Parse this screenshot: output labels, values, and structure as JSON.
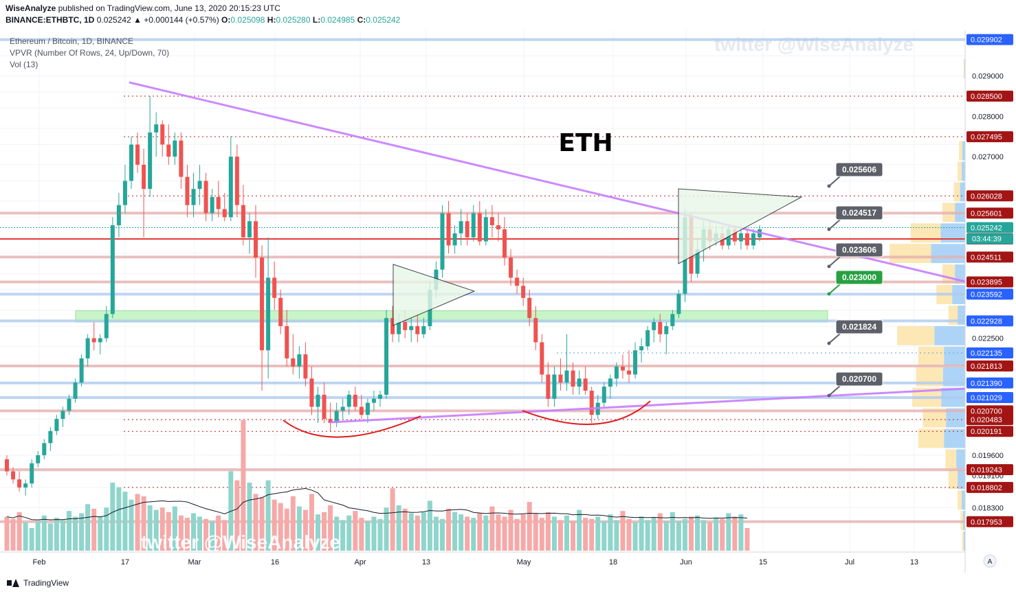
{
  "header": {
    "author": "WiseAnalyze",
    "published_text": "published on TradingView.com, June 13, 2020 20:15:23 UTC",
    "symbol_line": "BINANCE:ETHBTC, 1D",
    "change": "0.025242 ▲ +0.000144 (+0.57%)",
    "o_label": "O:",
    "o_value": "0.025098",
    "h_label": "H:",
    "h_value": "0.025280",
    "l_label": "L:",
    "l_value": "0.024985",
    "c_label": "C:",
    "c_value": "0.025242"
  },
  "legend": {
    "line1": "Ethereum / Bitcoin, 1D, BINANCE",
    "line2": "VPVR (Number Of Rows, 24, Up/Down, 70)",
    "line3": "Vol (13)"
  },
  "watermark": "twitter @WiseAnalyze",
  "chart_title": "ETH",
  "footer": {
    "brand": "TradingView"
  },
  "colors": {
    "up": "#26a69a",
    "down": "#ef5350",
    "trendline": "#c77dff",
    "resistance_band": "#e6b0b0",
    "support_band": "#aecbf0",
    "green_zone": "#b6f2b6",
    "price_tag_red": "#a31515",
    "price_tag_blue": "#2962ff",
    "price_tag_green": "#26a69a"
  },
  "chart_data": {
    "type": "candlestick",
    "symbol": "BINANCE:ETHBTC",
    "interval": "1D",
    "y_axis": {
      "ticks": [
        "0.029000",
        "0.028000",
        "0.027000",
        "0.022500",
        "0.019600",
        "0.019100",
        "0.018300"
      ],
      "ylim": [
        0.0172,
        0.0301
      ]
    },
    "x_axis": {
      "ticks": [
        "Feb",
        "17",
        "Mar",
        "16",
        "Apr",
        "13",
        "May",
        "18",
        "Jun",
        "15",
        "Jul",
        "13"
      ]
    },
    "candles": [
      [
        0.0195,
        0.0196,
        0.0191,
        0.0192
      ],
      [
        0.0192,
        0.0193,
        0.0189,
        0.019
      ],
      [
        0.019,
        0.0192,
        0.0187,
        0.0188
      ],
      [
        0.0188,
        0.019,
        0.0186,
        0.0189
      ],
      [
        0.0189,
        0.0195,
        0.0188,
        0.0194
      ],
      [
        0.0194,
        0.0197,
        0.0193,
        0.0196
      ],
      [
        0.0196,
        0.02,
        0.0195,
        0.0199
      ],
      [
        0.0199,
        0.0203,
        0.0197,
        0.0202
      ],
      [
        0.0202,
        0.0206,
        0.0201,
        0.0205
      ],
      [
        0.0205,
        0.0208,
        0.0203,
        0.0207
      ],
      [
        0.0207,
        0.0211,
        0.0206,
        0.021
      ],
      [
        0.021,
        0.0215,
        0.0209,
        0.0214
      ],
      [
        0.0214,
        0.0221,
        0.0213,
        0.022
      ],
      [
        0.022,
        0.0226,
        0.0218,
        0.0225
      ],
      [
        0.0225,
        0.0229,
        0.0222,
        0.0224
      ],
      [
        0.0224,
        0.0226,
        0.0221,
        0.0225
      ],
      [
        0.0225,
        0.0233,
        0.0224,
        0.0231
      ],
      [
        0.0231,
        0.0255,
        0.023,
        0.0253
      ],
      [
        0.0253,
        0.0261,
        0.025,
        0.0258
      ],
      [
        0.0258,
        0.0268,
        0.0256,
        0.0264
      ],
      [
        0.0264,
        0.0275,
        0.0262,
        0.0273
      ],
      [
        0.0273,
        0.0276,
        0.0266,
        0.0268
      ],
      [
        0.0268,
        0.0272,
        0.025,
        0.0262
      ],
      [
        0.0262,
        0.0285,
        0.026,
        0.0276
      ],
      [
        0.0276,
        0.0281,
        0.027,
        0.0278
      ],
      [
        0.0278,
        0.0279,
        0.027,
        0.0273
      ],
      [
        0.0273,
        0.0278,
        0.0268,
        0.027
      ],
      [
        0.027,
        0.0276,
        0.0268,
        0.0274
      ],
      [
        0.0274,
        0.0276,
        0.0262,
        0.0265
      ],
      [
        0.0265,
        0.0268,
        0.0255,
        0.0258
      ],
      [
        0.0258,
        0.0266,
        0.0255,
        0.0262
      ],
      [
        0.0262,
        0.0268,
        0.0258,
        0.0264
      ],
      [
        0.0264,
        0.0266,
        0.0254,
        0.0256
      ],
      [
        0.0256,
        0.0262,
        0.0254,
        0.026
      ],
      [
        0.026,
        0.0264,
        0.0255,
        0.0257
      ],
      [
        0.0257,
        0.0261,
        0.0254,
        0.0255
      ],
      [
        0.0255,
        0.0275,
        0.0254,
        0.027
      ],
      [
        0.027,
        0.0273,
        0.0255,
        0.0258
      ],
      [
        0.0258,
        0.0263,
        0.0248,
        0.025
      ],
      [
        0.025,
        0.0256,
        0.0246,
        0.0254
      ],
      [
        0.0254,
        0.0258,
        0.024,
        0.0245
      ],
      [
        0.0245,
        0.0248,
        0.0212,
        0.0222
      ],
      [
        0.0222,
        0.025,
        0.0215,
        0.024
      ],
      [
        0.024,
        0.0244,
        0.0232,
        0.0235
      ],
      [
        0.0235,
        0.0237,
        0.0226,
        0.0228
      ],
      [
        0.0228,
        0.0232,
        0.0218,
        0.022
      ],
      [
        0.022,
        0.0226,
        0.0216,
        0.0218
      ],
      [
        0.0218,
        0.0223,
        0.0215,
        0.0221
      ],
      [
        0.0221,
        0.0224,
        0.0213,
        0.0215
      ],
      [
        0.0215,
        0.0218,
        0.0206,
        0.0208
      ],
      [
        0.0208,
        0.0213,
        0.0204,
        0.0211
      ],
      [
        0.0211,
        0.0214,
        0.0204,
        0.0205
      ],
      [
        0.0205,
        0.0209,
        0.0202,
        0.0204
      ],
      [
        0.0204,
        0.0209,
        0.0203,
        0.0207
      ],
      [
        0.0207,
        0.021,
        0.0205,
        0.0208
      ],
      [
        0.0208,
        0.0212,
        0.0206,
        0.0211
      ],
      [
        0.0211,
        0.0213,
        0.0207,
        0.0208
      ],
      [
        0.0208,
        0.0211,
        0.0205,
        0.0206
      ],
      [
        0.0206,
        0.021,
        0.0204,
        0.0209
      ],
      [
        0.0209,
        0.0212,
        0.0207,
        0.021
      ],
      [
        0.021,
        0.0212,
        0.0208,
        0.0211
      ],
      [
        0.0211,
        0.0232,
        0.021,
        0.023
      ],
      [
        0.023,
        0.0233,
        0.0224,
        0.0226
      ],
      [
        0.0226,
        0.0231,
        0.0224,
        0.0229
      ],
      [
        0.0229,
        0.0232,
        0.0225,
        0.0227
      ],
      [
        0.0227,
        0.023,
        0.0224,
        0.0228
      ],
      [
        0.0228,
        0.0231,
        0.0224,
        0.0226
      ],
      [
        0.0226,
        0.023,
        0.0225,
        0.0228
      ],
      [
        0.0228,
        0.0239,
        0.0227,
        0.0237
      ],
      [
        0.0237,
        0.0244,
        0.0235,
        0.0242
      ],
      [
        0.0242,
        0.0258,
        0.024,
        0.0256
      ],
      [
        0.0256,
        0.0259,
        0.0246,
        0.0248
      ],
      [
        0.0248,
        0.0253,
        0.0246,
        0.0251
      ],
      [
        0.0251,
        0.0257,
        0.0248,
        0.0254
      ],
      [
        0.0254,
        0.0256,
        0.0248,
        0.025
      ],
      [
        0.025,
        0.0258,
        0.0249,
        0.0256
      ],
      [
        0.0256,
        0.0259,
        0.0248,
        0.0249
      ],
      [
        0.0249,
        0.0257,
        0.0248,
        0.0255
      ],
      [
        0.0255,
        0.0258,
        0.025,
        0.0253
      ],
      [
        0.0253,
        0.0256,
        0.0249,
        0.0252
      ],
      [
        0.0252,
        0.0255,
        0.0243,
        0.0245
      ],
      [
        0.0245,
        0.0247,
        0.0238,
        0.024
      ],
      [
        0.024,
        0.0242,
        0.0236,
        0.0238
      ],
      [
        0.0238,
        0.024,
        0.0233,
        0.0235
      ],
      [
        0.0235,
        0.0237,
        0.0228,
        0.023
      ],
      [
        0.023,
        0.0233,
        0.0222,
        0.0224
      ],
      [
        0.0224,
        0.0226,
        0.0214,
        0.0216
      ],
      [
        0.0216,
        0.0219,
        0.0208,
        0.021
      ],
      [
        0.021,
        0.0218,
        0.0208,
        0.0216
      ],
      [
        0.0216,
        0.022,
        0.0212,
        0.0214
      ],
      [
        0.0214,
        0.0226,
        0.0212,
        0.0217
      ],
      [
        0.0217,
        0.0219,
        0.0211,
        0.0213
      ],
      [
        0.0213,
        0.0217,
        0.0211,
        0.0215
      ],
      [
        0.0215,
        0.0218,
        0.0211,
        0.0212
      ],
      [
        0.0212,
        0.0213,
        0.0204,
        0.0206
      ],
      [
        0.0206,
        0.0211,
        0.0205,
        0.0209
      ],
      [
        0.0209,
        0.0214,
        0.0208,
        0.0213
      ],
      [
        0.0213,
        0.0216,
        0.021,
        0.0215
      ],
      [
        0.0215,
        0.0219,
        0.0213,
        0.0218
      ],
      [
        0.0218,
        0.0221,
        0.0215,
        0.0217
      ],
      [
        0.0217,
        0.0222,
        0.0214,
        0.0216
      ],
      [
        0.0216,
        0.0224,
        0.0215,
        0.0222
      ],
      [
        0.0222,
        0.0225,
        0.0219,
        0.0223
      ],
      [
        0.0223,
        0.0228,
        0.0222,
        0.0227
      ],
      [
        0.0227,
        0.023,
        0.0224,
        0.0229
      ],
      [
        0.0229,
        0.0231,
        0.0224,
        0.0226
      ],
      [
        0.0226,
        0.0229,
        0.0221,
        0.0228
      ],
      [
        0.0228,
        0.0232,
        0.0227,
        0.0231
      ],
      [
        0.0231,
        0.0237,
        0.023,
        0.0236
      ],
      [
        0.0236,
        0.0257,
        0.0234,
        0.0255
      ],
      [
        0.0255,
        0.0256,
        0.0239,
        0.0241
      ],
      [
        0.0241,
        0.025,
        0.024,
        0.0247
      ],
      [
        0.0247,
        0.0254,
        0.0244,
        0.0252
      ],
      [
        0.0252,
        0.0254,
        0.0247,
        0.0249
      ],
      [
        0.0249,
        0.0253,
        0.0248,
        0.0251
      ],
      [
        0.0251,
        0.0253,
        0.0247,
        0.0248
      ],
      [
        0.0248,
        0.0253,
        0.0247,
        0.0252
      ],
      [
        0.0252,
        0.0253,
        0.0248,
        0.0249
      ],
      [
        0.0249,
        0.0253,
        0.0247,
        0.0251
      ],
      [
        0.0251,
        0.0252,
        0.0247,
        0.0248
      ],
      [
        0.0248,
        0.0252,
        0.0247,
        0.0251
      ],
      [
        0.025,
        0.0253,
        0.0249,
        0.0252
      ]
    ],
    "volume": [
      30,
      28,
      34,
      25,
      20,
      26,
      31,
      24,
      29,
      27,
      35,
      30,
      33,
      41,
      37,
      30,
      38,
      60,
      56,
      52,
      45,
      50,
      48,
      40,
      36,
      38,
      34,
      39,
      31,
      29,
      33,
      30,
      28,
      26,
      31,
      27,
      70,
      62,
      115,
      60,
      50,
      47,
      62,
      45,
      42,
      37,
      48,
      39,
      36,
      50,
      32,
      34,
      40,
      30,
      27,
      31,
      35,
      29,
      26,
      30,
      28,
      38,
      55,
      40,
      37,
      33,
      31,
      34,
      44,
      30,
      28,
      37,
      34,
      32,
      30,
      29,
      33,
      31,
      39,
      32,
      30,
      36,
      28,
      32,
      43,
      33,
      29,
      34,
      30,
      27,
      31,
      26,
      36,
      29,
      28,
      30,
      26,
      32,
      27,
      35,
      28,
      25,
      30,
      27,
      29,
      33,
      26,
      34,
      26,
      28,
      30,
      31,
      27,
      25,
      29,
      28,
      33,
      30,
      32,
      20
    ],
    "price_levels": [
      {
        "value": "0.029902",
        "type": "support",
        "tag": "blue"
      },
      {
        "value": "0.028500",
        "type": "dotted-resistance",
        "tag": "red"
      },
      {
        "value": "0.027495",
        "type": "dotted-resistance",
        "tag": "red"
      },
      {
        "value": "0.026028",
        "type": "dotted-resistance",
        "tag": "red"
      },
      {
        "value": "0.025601",
        "type": "resistance",
        "tag": "red"
      },
      {
        "value": "0.025242",
        "type": "last-price",
        "tag": "green"
      },
      {
        "value": "0.024960",
        "type": "key-level",
        "tag": "red"
      },
      {
        "value": "0.024511",
        "type": "resistance",
        "tag": "red"
      },
      {
        "value": "0.023895",
        "type": "resistance",
        "tag": "red"
      },
      {
        "value": "0.023592",
        "type": "support",
        "tag": "blue"
      },
      {
        "value": "0.022928",
        "type": "support",
        "tag": "blue"
      },
      {
        "value": "0.022135",
        "type": "dotted-support",
        "tag": "blue"
      },
      {
        "value": "0.021813",
        "type": "resistance",
        "tag": "red"
      },
      {
        "value": "0.021390",
        "type": "support",
        "tag": "blue"
      },
      {
        "value": "0.021029",
        "type": "support",
        "tag": "blue"
      },
      {
        "value": "0.020700",
        "type": "resistance",
        "tag": "red"
      },
      {
        "value": "0.020483",
        "type": "dotted-resistance",
        "tag": "red"
      },
      {
        "value": "0.020191",
        "type": "dotted-resistance",
        "tag": "red"
      },
      {
        "value": "0.019243",
        "type": "resistance",
        "tag": "red"
      },
      {
        "value": "0.018802",
        "type": "dotted-resistance",
        "tag": "red"
      },
      {
        "value": "0.017953",
        "type": "resistance",
        "tag": "red"
      }
    ],
    "countdown": "03:44:39",
    "callouts": [
      {
        "value": "0.025606",
        "color": "gray"
      },
      {
        "value": "0.024517",
        "color": "gray"
      },
      {
        "value": "0.023606",
        "color": "gray"
      },
      {
        "value": "0.023000",
        "color": "green"
      },
      {
        "value": "0.021824",
        "color": "gray"
      },
      {
        "value": "0.020700",
        "color": "gray"
      }
    ],
    "vpvr": [
      0.02,
      0.0,
      0.0,
      0.0,
      0.08,
      0.1,
      0.15,
      0.3,
      0.72,
      1.0,
      0.3,
      0.38,
      0.22,
      0.9,
      0.62,
      0.65,
      0.7,
      0.56,
      0.62,
      0.26,
      0.22,
      0.1,
      0.06,
      0.04
    ]
  }
}
